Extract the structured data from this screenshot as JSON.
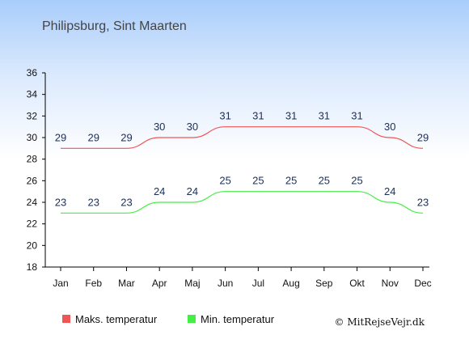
{
  "chart_data": {
    "type": "line",
    "title": "Philipsburg, Sint Maarten",
    "categories": [
      "Jan",
      "Feb",
      "Mar",
      "Apr",
      "Maj",
      "Jun",
      "Jul",
      "Aug",
      "Sep",
      "Okt",
      "Nov",
      "Dec"
    ],
    "series": [
      {
        "name": "Maks. temperatur",
        "color": "#ee5555",
        "values": [
          29,
          29,
          29,
          30,
          30,
          31,
          31,
          31,
          31,
          31,
          30,
          29
        ]
      },
      {
        "name": "Min. temperatur",
        "color": "#44ee44",
        "values": [
          23,
          23,
          23,
          24,
          24,
          25,
          25,
          25,
          25,
          25,
          24,
          23
        ]
      }
    ],
    "ylim": [
      18,
      36
    ],
    "yticks": [
      18,
      20,
      22,
      24,
      26,
      28,
      30,
      32,
      34,
      36
    ],
    "xlabel": "",
    "ylabel": "",
    "grid": false,
    "legend_position": "bottom-left"
  },
  "credit": "© MitRejseVejr.dk"
}
